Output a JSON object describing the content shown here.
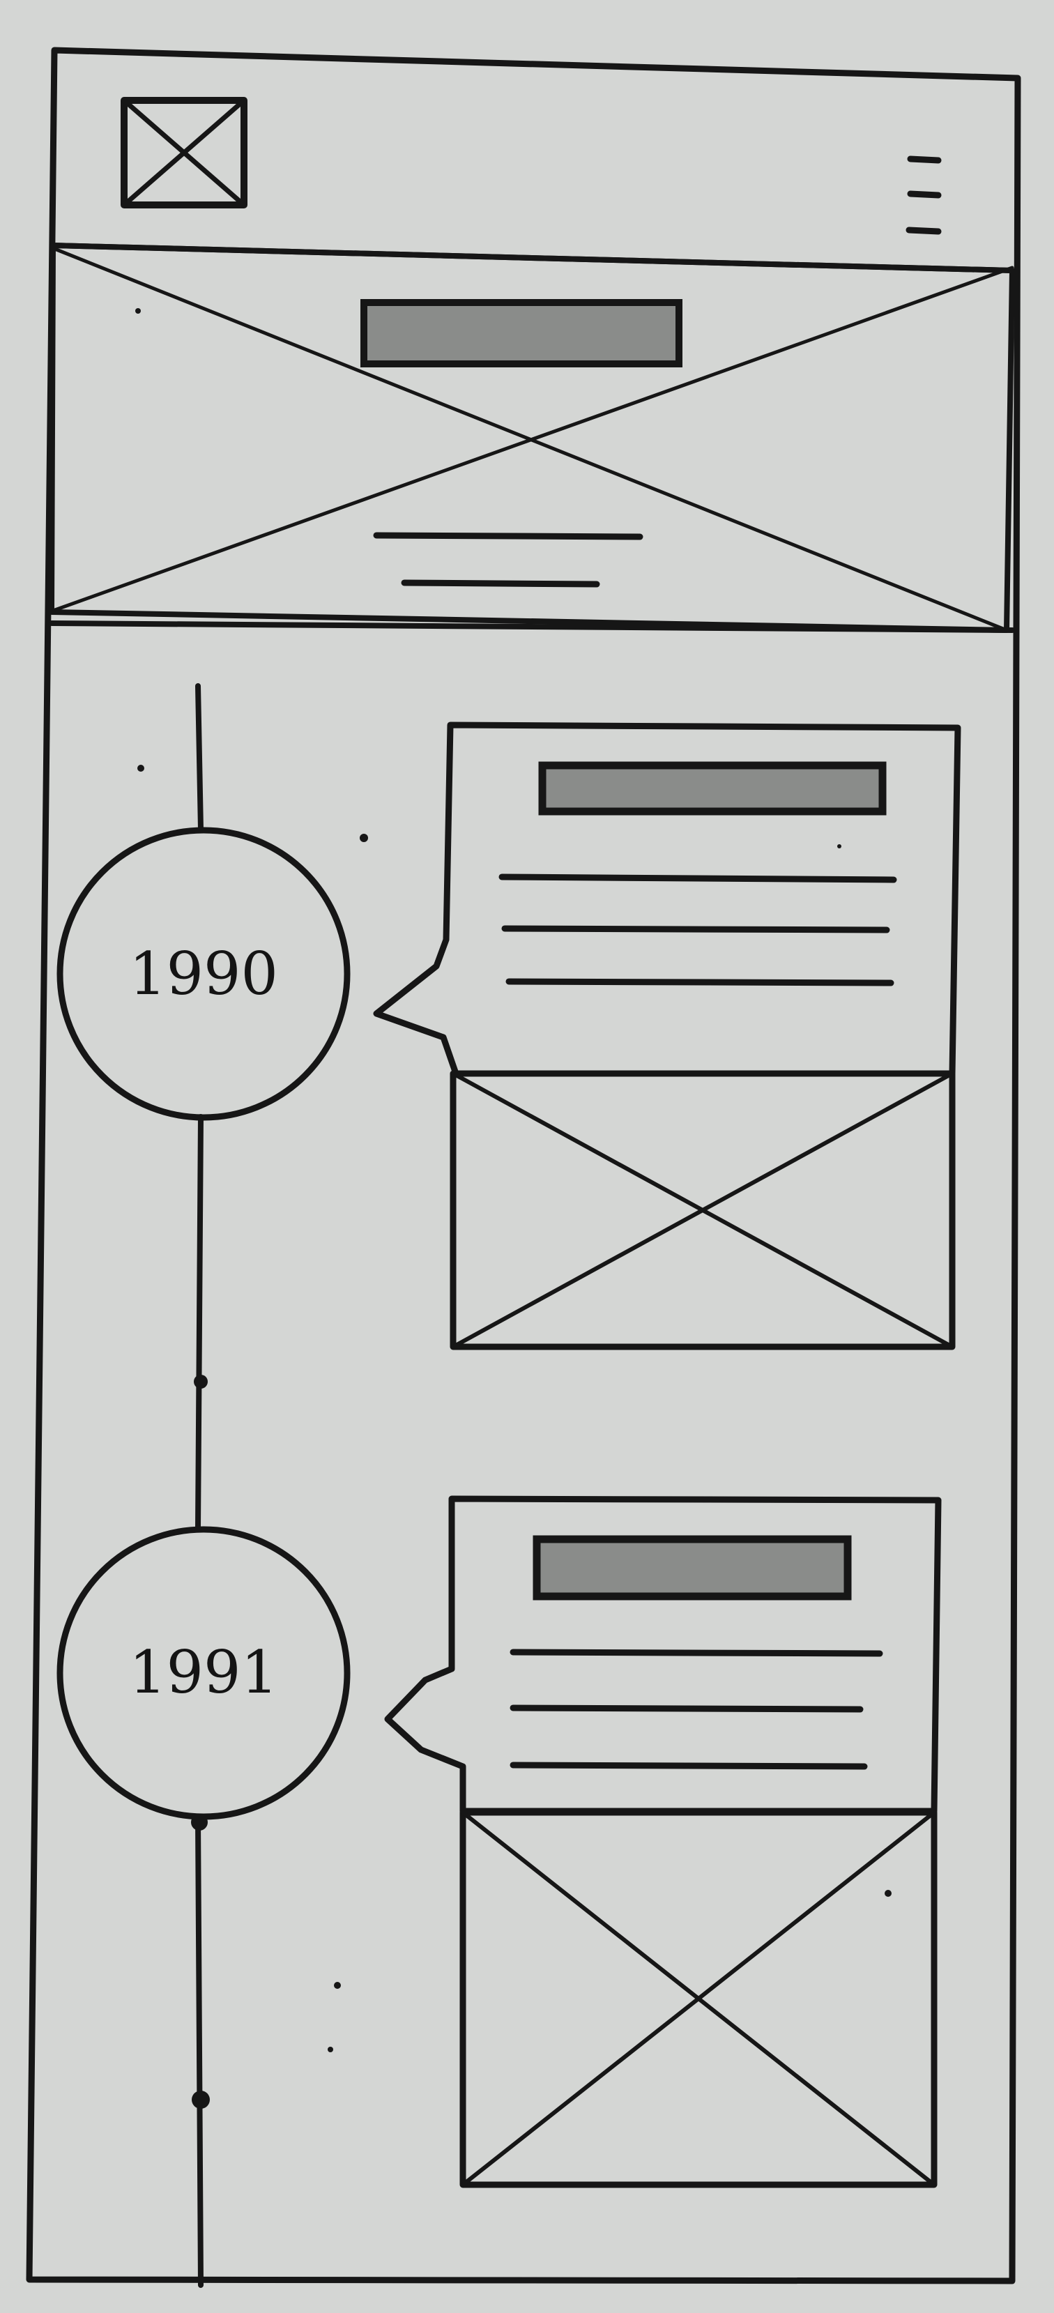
{
  "timeline": {
    "items": [
      {
        "year": "1990"
      },
      {
        "year": "1991"
      }
    ]
  },
  "colors": {
    "paper": "#d4d6d4",
    "ink": "#161616",
    "heading_placeholder": "#8a8c8a"
  }
}
